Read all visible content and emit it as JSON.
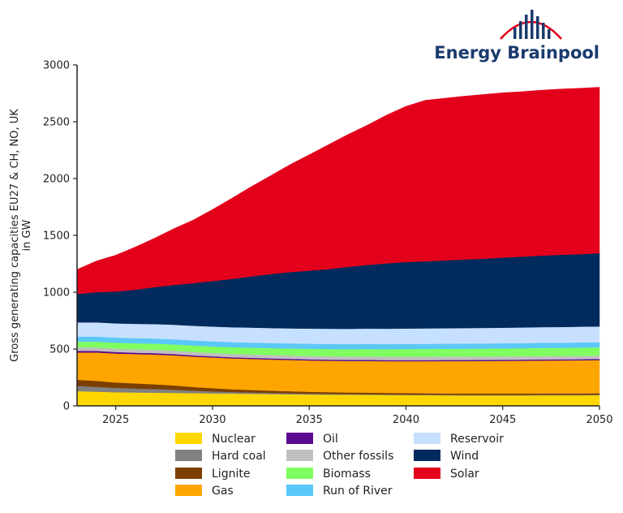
{
  "brand": {
    "name": "Energy Brainpool"
  },
  "chart_data": {
    "type": "area",
    "stacked": true,
    "ylabel": "Gross generating capacities EU27 & CH, NO, UK in GW",
    "ylabel_lines": [
      "Gross generating capacities EU27 & CH, NO, UK",
      "in GW"
    ],
    "xlabel": "",
    "xlim": [
      2023,
      2050
    ],
    "ylim": [
      0,
      3000
    ],
    "x_ticks": [
      2025,
      2030,
      2035,
      2040,
      2045,
      2050
    ],
    "y_ticks": [
      0,
      500,
      1000,
      1500,
      2000,
      2500,
      3000
    ],
    "x_tick_labels": [
      "2025",
      "2030",
      "2035",
      "2040",
      "2045",
      "2050"
    ],
    "y_tick_labels": [
      "0",
      "500",
      "1000",
      "1500",
      "2000",
      "2500",
      "3000"
    ],
    "legend_position": "bottom",
    "x": [
      2023,
      2024,
      2025,
      2026,
      2027,
      2028,
      2029,
      2030,
      2031,
      2032,
      2033,
      2034,
      2035,
      2036,
      2037,
      2038,
      2039,
      2040,
      2041,
      2042,
      2043,
      2044,
      2045,
      2046,
      2047,
      2048,
      2049,
      2050
    ],
    "series": [
      {
        "name": "Nuclear",
        "color": "#ffd700",
        "values": [
          130,
          125,
          120,
          118,
          116,
          114,
          112,
          110,
          108,
          106,
          104,
          102,
          100,
          99,
          98,
          97,
          96,
          95,
          94,
          93,
          92,
          92,
          92,
          92,
          93,
          93,
          93,
          94
        ]
      },
      {
        "name": "Hard coal",
        "color": "#808080",
        "values": [
          45,
          43,
          38,
          35,
          32,
          28,
          22,
          18,
          14,
          12,
          10,
          9,
          8,
          7,
          6,
          6,
          5,
          5,
          5,
          5,
          5,
          5,
          5,
          5,
          5,
          5,
          5,
          5
        ]
      },
      {
        "name": "Lignite",
        "color": "#7b3f00",
        "values": [
          55,
          52,
          48,
          45,
          42,
          38,
          32,
          28,
          24,
          22,
          20,
          18,
          16,
          15,
          14,
          14,
          13,
          13,
          12,
          12,
          12,
          12,
          12,
          12,
          12,
          12,
          12,
          12
        ]
      },
      {
        "name": "Gas",
        "color": "#ffa500",
        "values": [
          240,
          250,
          255,
          258,
          262,
          265,
          268,
          270,
          272,
          273,
          274,
          275,
          276,
          276,
          277,
          278,
          279,
          280,
          282,
          284,
          285,
          286,
          287,
          288,
          289,
          290,
          291,
          292
        ]
      },
      {
        "name": "Oil",
        "color": "#5b0a91",
        "values": [
          15,
          14,
          13,
          12,
          12,
          11,
          11,
          10,
          10,
          10,
          10,
          10,
          10,
          10,
          10,
          10,
          10,
          10,
          10,
          10,
          10,
          10,
          10,
          10,
          10,
          10,
          10,
          10
        ]
      },
      {
        "name": "Other fossils",
        "color": "#c0c0c0",
        "values": [
          30,
          30,
          30,
          30,
          30,
          30,
          30,
          30,
          30,
          30,
          30,
          30,
          30,
          30,
          30,
          30,
          30,
          30,
          30,
          30,
          30,
          30,
          30,
          30,
          30,
          30,
          30,
          30
        ]
      },
      {
        "name": "Biomass",
        "color": "#80ff60",
        "values": [
          50,
          51,
          52,
          53,
          54,
          55,
          56,
          57,
          58,
          59,
          60,
          61,
          62,
          63,
          64,
          65,
          66,
          67,
          68,
          68,
          69,
          69,
          70,
          70,
          71,
          71,
          72,
          72
        ]
      },
      {
        "name": "Run of River",
        "color": "#5bc8fa",
        "values": [
          45,
          45,
          45,
          45,
          45,
          45,
          45,
          45,
          45,
          45,
          45,
          45,
          45,
          45,
          45,
          45,
          45,
          45,
          45,
          45,
          45,
          45,
          45,
          45,
          45,
          45,
          45,
          45
        ]
      },
      {
        "name": "Reservoir",
        "color": "#c8e0ff",
        "values": [
          125,
          125,
          125,
          126,
          127,
          128,
          129,
          130,
          131,
          132,
          132,
          132,
          133,
          134,
          134,
          135,
          135,
          136,
          136,
          136,
          137,
          137,
          137,
          138,
          138,
          138,
          139,
          139
        ]
      },
      {
        "name": "Wind",
        "color": "#002b5c",
        "values": [
          250,
          265,
          280,
          300,
          325,
          350,
          375,
          400,
          425,
          450,
          475,
          495,
          510,
          525,
          545,
          560,
          575,
          585,
          590,
          597,
          603,
          609,
          617,
          623,
          629,
          636,
          638,
          645
        ]
      },
      {
        "name": "Solar",
        "color": "#e3001b",
        "values": [
          215,
          275,
          320,
          375,
          430,
          495,
          555,
          630,
          710,
          790,
          865,
          945,
          1020,
          1095,
          1165,
          1230,
          1305,
          1370,
          1417,
          1427,
          1437,
          1445,
          1450,
          1452,
          1456,
          1458,
          1460,
          1460
        ]
      }
    ]
  }
}
